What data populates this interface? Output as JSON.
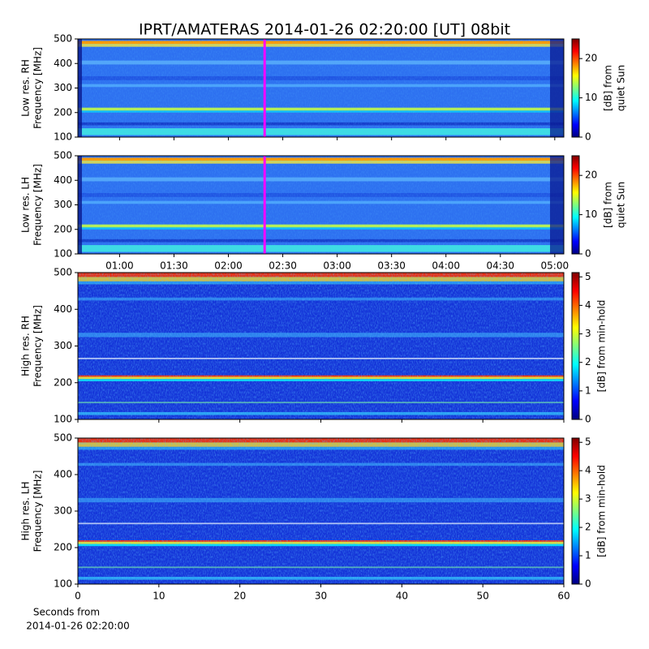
{
  "chart_data": [
    {
      "type": "heatmap",
      "title": "IPRT/AMATERAS 2014-01-26 02:20:00 [UT]   08bit",
      "ylabel": [
        "Low res. RH",
        "Frequency [MHz]"
      ],
      "ylim": [
        100,
        500
      ],
      "yticks": [
        100,
        200,
        300,
        400,
        500
      ],
      "xlim": [
        37,
        305
      ],
      "sharex": 1,
      "vline": {
        "x": 140,
        "color": "#ff00ff"
      },
      "colorbar": {
        "label": [
          "[dB] from",
          "quiet Sun"
        ],
        "clim": [
          0,
          25
        ],
        "ticks": [
          0,
          10,
          20
        ]
      }
    },
    {
      "type": "heatmap",
      "ylabel": [
        "Low res. LH",
        "Frequency [MHz]"
      ],
      "ylim": [
        100,
        500
      ],
      "yticks": [
        100,
        200,
        300,
        400,
        500
      ],
      "xlim": [
        37,
        305
      ],
      "xticks": [
        {
          "value": 60,
          "label": "01:00"
        },
        {
          "value": 90,
          "label": "01:30"
        },
        {
          "value": 120,
          "label": "02:00"
        },
        {
          "value": 150,
          "label": "02:30"
        },
        {
          "value": 180,
          "label": "03:00"
        },
        {
          "value": 210,
          "label": "03:30"
        },
        {
          "value": 240,
          "label": "04:00"
        },
        {
          "value": 270,
          "label": "04:30"
        },
        {
          "value": 300,
          "label": "05:00"
        }
      ],
      "vline": {
        "x": 140,
        "color": "#ff00ff"
      },
      "colorbar": {
        "label": [
          "[dB] from",
          "quiet Sun"
        ],
        "clim": [
          0,
          25
        ],
        "ticks": [
          0,
          10,
          20
        ]
      }
    },
    {
      "type": "heatmap",
      "ylabel": [
        "High res. RH",
        "Frequency [MHz]"
      ],
      "ylim": [
        100,
        500
      ],
      "yticks": [
        100,
        200,
        300,
        400,
        500
      ],
      "xlim": [
        0,
        60
      ],
      "sharex": 3,
      "colorbar": {
        "label": [
          "[dB] from min-hold"
        ],
        "clim": [
          0,
          5.15
        ],
        "ticks": [
          0,
          1,
          2,
          3,
          4,
          5
        ]
      }
    },
    {
      "type": "heatmap",
      "ylabel": [
        "High res. LH",
        "Frequency [MHz]"
      ],
      "ylim": [
        100,
        500
      ],
      "yticks": [
        100,
        200,
        300,
        400,
        500
      ],
      "xlim": [
        0,
        60
      ],
      "xticks": [
        0,
        10,
        20,
        30,
        40,
        50,
        60
      ],
      "xlabel": [
        "Seconds from",
        "2014-01-26 02:20:00"
      ],
      "colorbar": {
        "label": [
          "[dB] from min-hold"
        ],
        "clim": [
          0,
          5.15
        ],
        "ticks": [
          0,
          1,
          2,
          3,
          4,
          5
        ]
      }
    }
  ]
}
